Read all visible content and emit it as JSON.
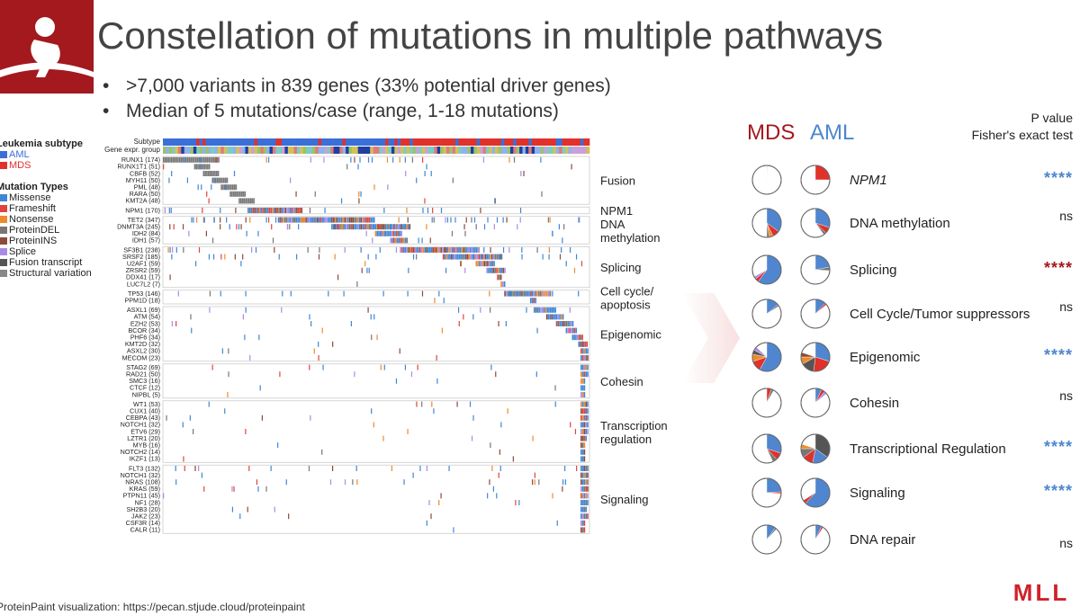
{
  "slide": {
    "title": "Constellation of mutations in multiple pathways",
    "bullets": [
      ">7,000 variants in 839 genes (33% potential driver genes)",
      "Median of 5 mutations/case (range, 1-18 mutations)"
    ],
    "footer": "ProteinPaint visualization: https://pecan.stjude.cloud/proteinpaint",
    "logo_text": "MLL",
    "bullet_char": "•"
  },
  "legend": {
    "subtype_title": "Leukemia subtype",
    "subtypes": [
      {
        "label": "AML",
        "color": "#3a6fd8"
      },
      {
        "label": "MDS",
        "color": "#e0312b"
      }
    ],
    "mutation_title": "Mutation Types",
    "mutation_types": [
      {
        "label": "Missense",
        "color": "#3f86d6"
      },
      {
        "label": "Frameshift",
        "color": "#e0443a"
      },
      {
        "label": "Nonsense",
        "color": "#ef8a2c"
      },
      {
        "label": "ProteinDEL",
        "color": "#777777"
      },
      {
        "label": "ProteinINS",
        "color": "#8b4a3a"
      },
      {
        "label": "Splice",
        "color": "#a98be6"
      },
      {
        "label": "Fusion transcript",
        "color": "#555555"
      },
      {
        "label": "Structural variation",
        "color": "#888888"
      }
    ]
  },
  "matrix": {
    "header_rows": [
      "Subtype",
      "Gene expr. group"
    ],
    "groups": [
      {
        "name": "Fusion",
        "genes": [
          "RUNX1 (174)",
          "RUNX1T1 (51)",
          "CBFB (52)",
          "MYH11 (50)",
          "PML (48)",
          "RARA (50)",
          "KMT2A (48)"
        ]
      },
      {
        "name": "NPM1",
        "genes": [
          "NPM1 (170)"
        ]
      },
      {
        "name": "DNA methylation",
        "genes": [
          "TET2 (347)",
          "DNMT3A (245)",
          "IDH2 (84)",
          "IDH1 (57)"
        ]
      },
      {
        "name": "Splicing",
        "genes": [
          "SF3B1 (238)",
          "SRSF2 (185)",
          "U2AF1 (59)",
          "ZRSR2 (59)",
          "DDX41 (17)",
          "LUC7L2 (7)"
        ]
      },
      {
        "name": "Cell cycle/ apoptosis",
        "genes": [
          "TP53 (146)",
          "PPM1D (18)"
        ]
      },
      {
        "name": "Epigenomic",
        "genes": [
          "ASXL1 (69)",
          "ATM (54)",
          "EZH2 (53)",
          "BCOR (34)",
          "PHF6 (34)",
          "KMT2D (32)",
          "ASXL2 (30)",
          "MECOM (23)"
        ]
      },
      {
        "name": "Cohesin",
        "genes": [
          "STAG2 (69)",
          "RAD21 (50)",
          "SMC3 (16)",
          "CTCF (12)",
          "NIPBL (5)"
        ]
      },
      {
        "name": "Transcription regulation",
        "genes": [
          "WT1 (53)",
          "CUX1 (40)",
          "CEBPA (43)",
          "NOTCH1 (32)",
          "ETV6 (29)",
          "LZTR1 (20)",
          "MYB (16)",
          "NOTCH2 (14)",
          "IKZF1 (13)"
        ]
      },
      {
        "name": "Signaling",
        "genes": [
          "FLT3 (132)",
          "NOTCH1 (32)",
          "NRAS (108)",
          "KRAS (59)",
          "PTPN11 (45)",
          "NF1 (28)",
          "SH2B3 (20)",
          "JAK2 (23)",
          "CSF3R (14)",
          "CALR (11)"
        ]
      }
    ]
  },
  "comparison": {
    "mds_label": "MDS",
    "aml_label": "AML",
    "mds_color": "#a4191e",
    "aml_color": "#4f86cf",
    "pvalue_title_1": "P value",
    "pvalue_title_2": "Fisher's exact test",
    "rows": [
      {
        "label": "NPM1",
        "italic": true,
        "pvalue": "****",
        "pcolor": "#4f86cf",
        "mds": [
          {
            "v": 0.005,
            "c": "#e0312b"
          }
        ],
        "aml": [
          {
            "v": 0.25,
            "c": "#e0312b"
          }
        ]
      },
      {
        "label": "DNA methylation",
        "pvalue": "ns",
        "pcolor": "#222222",
        "mds": [
          {
            "v": 0.35,
            "c": "#4f86cf"
          },
          {
            "v": 0.08,
            "c": "#e0312b"
          },
          {
            "v": 0.04,
            "c": "#ef8a2c"
          },
          {
            "v": 0.03,
            "c": "#777777"
          }
        ],
        "aml": [
          {
            "v": 0.3,
            "c": "#4f86cf"
          },
          {
            "v": 0.07,
            "c": "#e0312b"
          },
          {
            "v": 0.03,
            "c": "#777777"
          }
        ]
      },
      {
        "label": "Splicing",
        "pvalue": "****",
        "pcolor": "#a4191e",
        "mds": [
          {
            "v": 0.6,
            "c": "#4f86cf"
          },
          {
            "v": 0.04,
            "c": "#e0312b"
          },
          {
            "v": 0.03,
            "c": "#a98be6"
          }
        ],
        "aml": [
          {
            "v": 0.22,
            "c": "#4f86cf"
          },
          {
            "v": 0.04,
            "c": "#777777"
          }
        ]
      },
      {
        "label": "Cell Cycle/Tumor suppressors",
        "pvalue": "ns",
        "pcolor": "#222222",
        "mds": [
          {
            "v": 0.14,
            "c": "#4f86cf"
          },
          {
            "v": 0.02,
            "c": "#777777"
          }
        ],
        "aml": [
          {
            "v": 0.12,
            "c": "#4f86cf"
          },
          {
            "v": 0.02,
            "c": "#e0312b"
          }
        ]
      },
      {
        "label": "Epigenomic",
        "pvalue": "****",
        "pcolor": "#4f86cf",
        "mds": [
          {
            "v": 0.58,
            "c": "#4f86cf"
          },
          {
            "v": 0.12,
            "c": "#e0312b"
          },
          {
            "v": 0.08,
            "c": "#ef8a2c"
          },
          {
            "v": 0.05,
            "c": "#555555"
          },
          {
            "v": 0.04,
            "c": "#a98be6"
          }
        ],
        "aml": [
          {
            "v": 0.3,
            "c": "#4f86cf"
          },
          {
            "v": 0.22,
            "c": "#e0312b"
          },
          {
            "v": 0.15,
            "c": "#555555"
          },
          {
            "v": 0.08,
            "c": "#ef8a2c"
          },
          {
            "v": 0.05,
            "c": "#8b4a3a"
          }
        ]
      },
      {
        "label": "Cohesin",
        "pvalue": "ns",
        "pcolor": "#222222",
        "mds": [
          {
            "v": 0.05,
            "c": "#e0312b"
          },
          {
            "v": 0.03,
            "c": "#777777"
          }
        ],
        "aml": [
          {
            "v": 0.07,
            "c": "#4f86cf"
          },
          {
            "v": 0.04,
            "c": "#e0312b"
          },
          {
            "v": 0.03,
            "c": "#a98be6"
          }
        ]
      },
      {
        "label": "Transcriptional Regulation",
        "pvalue": "****",
        "pcolor": "#4f86cf",
        "mds": [
          {
            "v": 0.3,
            "c": "#4f86cf"
          },
          {
            "v": 0.08,
            "c": "#e0312b"
          },
          {
            "v": 0.05,
            "c": "#777777"
          }
        ],
        "aml": [
          {
            "v": 0.35,
            "c": "#555555"
          },
          {
            "v": 0.18,
            "c": "#4f86cf"
          },
          {
            "v": 0.12,
            "c": "#e0312b"
          },
          {
            "v": 0.1,
            "c": "#777777"
          },
          {
            "v": 0.05,
            "c": "#ef8a2c"
          }
        ]
      },
      {
        "label": "Signaling",
        "pvalue": "****",
        "pcolor": "#4f86cf",
        "mds": [
          {
            "v": 0.24,
            "c": "#4f86cf"
          },
          {
            "v": 0.02,
            "c": "#e0312b"
          }
        ],
        "aml": [
          {
            "v": 0.62,
            "c": "#4f86cf"
          },
          {
            "v": 0.04,
            "c": "#e0312b"
          }
        ]
      },
      {
        "label": "DNA repair",
        "pvalue": "ns",
        "pcolor": "#222222",
        "mds": [
          {
            "v": 0.1,
            "c": "#4f86cf"
          },
          {
            "v": 0.02,
            "c": "#777777"
          }
        ],
        "aml": [
          {
            "v": 0.07,
            "c": "#4f86cf"
          },
          {
            "v": 0.02,
            "c": "#e0312b"
          }
        ]
      }
    ]
  }
}
